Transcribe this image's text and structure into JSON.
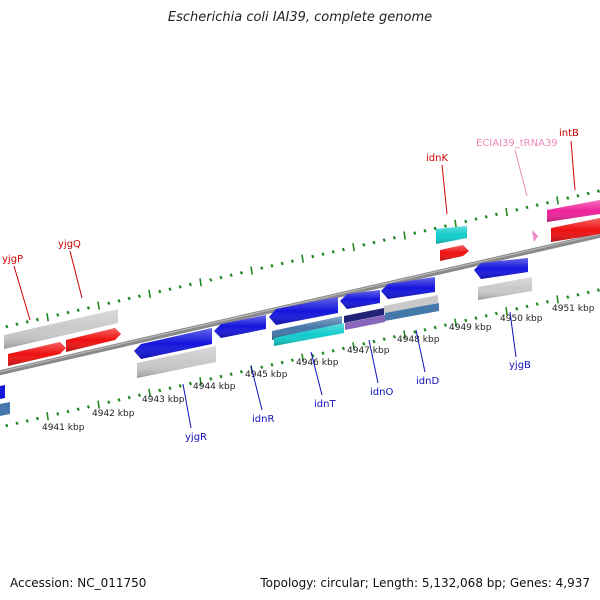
{
  "title": "Escherichia coli IAI39, complete genome",
  "footer": {
    "accession": "Accession: NC_011750",
    "summary": "Topology: circular; Length: 5,132,068 bp; Genes: 4,937"
  },
  "colors": {
    "forward_gene": "#ee1111",
    "reverse_gene": "#1515dd",
    "pseudo_gene": "#cccccc",
    "trna": "#ee88cc",
    "integrase": "#ee2299",
    "cds_cyan": "#11cccc",
    "steel": "#4477aa",
    "navy": "#222277",
    "lavender": "#8866bb",
    "axis": "#888888",
    "tick": "#228822",
    "forward_label": "#cc0000",
    "reverse_label": "#1111bb",
    "trna_label": "#ee88bb"
  },
  "axis_ticks": [
    "4941 kbp",
    "4942 kbp",
    "4943 kbp",
    "4944 kbp",
    "4945 kbp",
    "4946 kbp",
    "4947 kbp",
    "4948 kbp",
    "4949 kbp",
    "4950 kbp",
    "4951 kbp"
  ],
  "labels": {
    "forward": [
      "yjgP",
      "yjgQ",
      "idnK",
      "intB"
    ],
    "trna": [
      "ECIAI39_tRNA39"
    ],
    "reverse": [
      "yjgR",
      "idnR",
      "idnT",
      "idnO",
      "idnD",
      "yjgB"
    ]
  }
}
